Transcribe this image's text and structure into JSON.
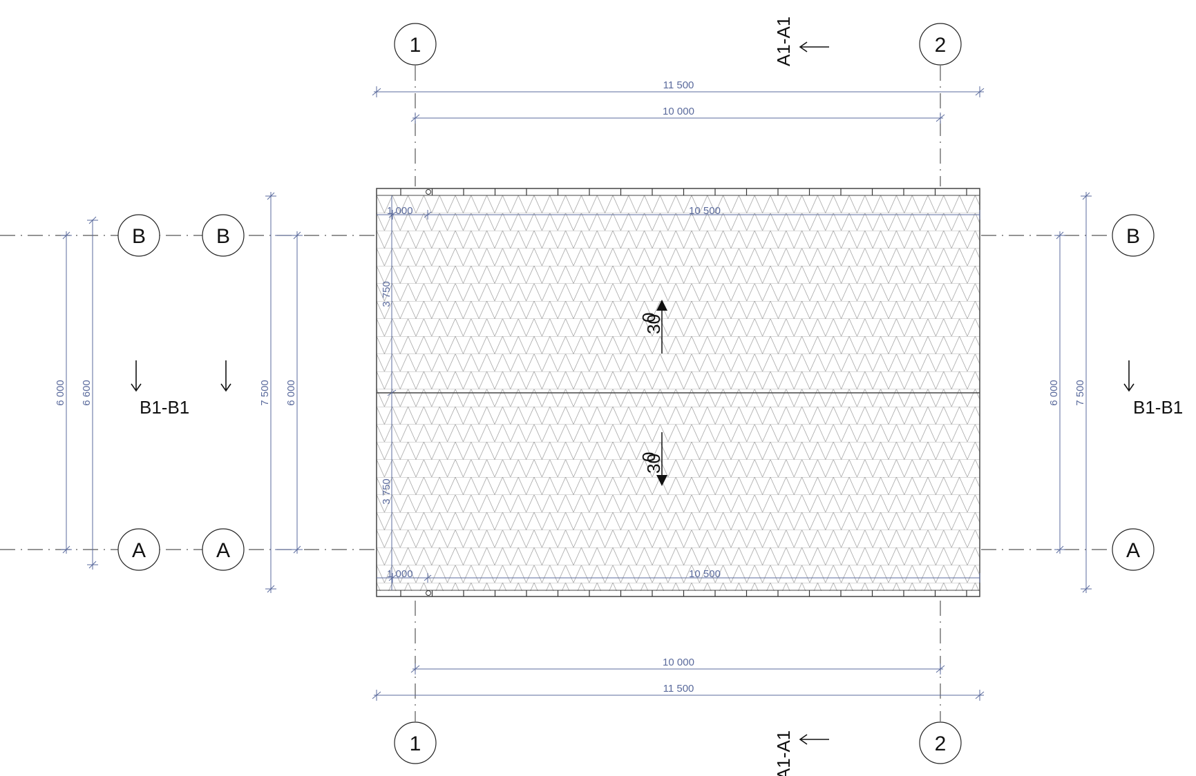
{
  "grid_axes": {
    "columns": [
      "1",
      "2"
    ],
    "rows": [
      "A",
      "B"
    ]
  },
  "section_marks": {
    "a1": "A1-A1",
    "b1": "B1-B1"
  },
  "dimensions": {
    "overall_width": "11 500",
    "axis_width": "10 000",
    "eave_offset": "1 000",
    "eave_span": "10 500",
    "half_depth": "3 750",
    "axis_depth": "6 000",
    "depth_660": "6 600",
    "overall_depth": "7 500"
  },
  "roof_slope": {
    "value": "30",
    "unit_mark": "0"
  }
}
